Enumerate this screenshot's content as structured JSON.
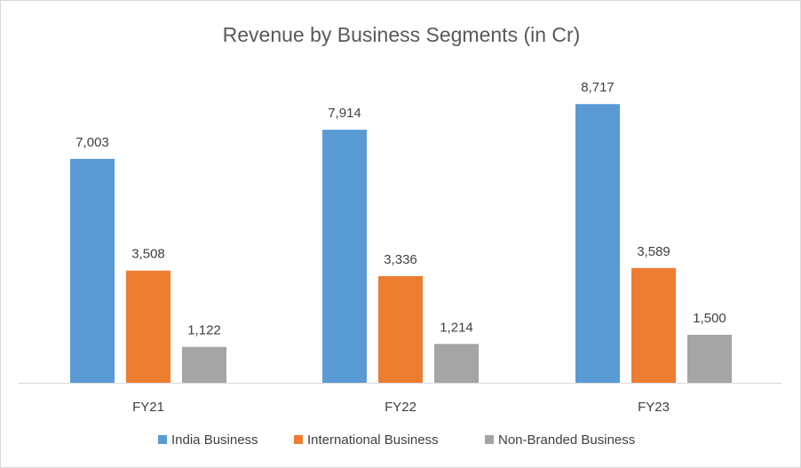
{
  "chart_data": {
    "type": "bar",
    "title": "Revenue by Business Segments (in Cr)",
    "xlabel": "",
    "ylabel": "",
    "categories": [
      "FY21",
      "FY22",
      "FY23"
    ],
    "series": [
      {
        "name": "India Business",
        "values": [
          7003,
          7914,
          8717
        ],
        "labels": [
          "7,003",
          "7,914",
          "8,717"
        ],
        "color": "#5b9bd5"
      },
      {
        "name": "International Business",
        "values": [
          3508,
          3336,
          3589
        ],
        "labels": [
          "3,508",
          "3,336",
          "3,589"
        ],
        "color": "#ed7d31"
      },
      {
        "name": "Non-Branded Business",
        "values": [
          1122,
          1214,
          1500
        ],
        "labels": [
          "1,122",
          "1,214",
          "1,500"
        ],
        "color": "#a5a5a5"
      }
    ],
    "ylim": [
      0,
      10000
    ],
    "grid": false,
    "legend": "bottom"
  },
  "colors": {
    "axis": "#d9d9d9",
    "text": "#404040",
    "title": "#595959"
  }
}
